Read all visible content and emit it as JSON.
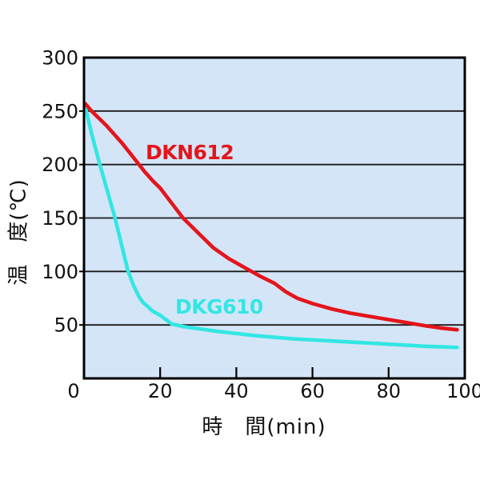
{
  "chart_data": {
    "type": "line",
    "title": "",
    "xlabel": "時　間(min)",
    "ylabel": "温　度(℃)",
    "xlim": [
      0,
      100
    ],
    "ylim": [
      0,
      300
    ],
    "x_ticks": [
      0,
      20,
      40,
      60,
      80,
      100
    ],
    "y_ticks": [
      50,
      100,
      150,
      200,
      250,
      300
    ],
    "grid": "horizontal gridlines at every 50 °C, on",
    "legend_position": "inline labels next to curves",
    "colors": {
      "plot_background": "#d4e5f8",
      "outer_background": "#ffffff",
      "gridline": "#1a1a1a",
      "border": "#000000",
      "dkn612_red": "#e4151b",
      "dkg610_cyan": "#33e6e3",
      "text": "#111111"
    },
    "series": [
      {
        "name": "DKN612",
        "color": "#e4151b",
        "points": [
          [
            0.3,
            257
          ],
          [
            2,
            250
          ],
          [
            4,
            243
          ],
          [
            6,
            236
          ],
          [
            8,
            228
          ],
          [
            10,
            220
          ],
          [
            12,
            211
          ],
          [
            14,
            202
          ],
          [
            16,
            193
          ],
          [
            18,
            185
          ],
          [
            20,
            178
          ],
          [
            23,
            164
          ],
          [
            26,
            150
          ],
          [
            30,
            136
          ],
          [
            34,
            122
          ],
          [
            38,
            112
          ],
          [
            42,
            104
          ],
          [
            46,
            96
          ],
          [
            50,
            89
          ],
          [
            53,
            81
          ],
          [
            56,
            75
          ],
          [
            60,
            70
          ],
          [
            65,
            65
          ],
          [
            70,
            61
          ],
          [
            75,
            58
          ],
          [
            80,
            55
          ],
          [
            85,
            52
          ],
          [
            90,
            49
          ],
          [
            94,
            47
          ],
          [
            98,
            45.5
          ]
        ]
      },
      {
        "name": "DKG610",
        "color": "#33e6e3",
        "points": [
          [
            0.3,
            254
          ],
          [
            2,
            229
          ],
          [
            4,
            202
          ],
          [
            6,
            177
          ],
          [
            8,
            152
          ],
          [
            10,
            123
          ],
          [
            11.5,
            101
          ],
          [
            13,
            87
          ],
          [
            14.5,
            76
          ],
          [
            15.5,
            71
          ],
          [
            16.5,
            68
          ],
          [
            18,
            63
          ],
          [
            20,
            59
          ],
          [
            23,
            51
          ],
          [
            26,
            48.5
          ],
          [
            30,
            46.5
          ],
          [
            35,
            44
          ],
          [
            40,
            42
          ],
          [
            45,
            40
          ],
          [
            50,
            38.5
          ],
          [
            55,
            37
          ],
          [
            60,
            36
          ],
          [
            65,
            35
          ],
          [
            70,
            34
          ],
          [
            75,
            33
          ],
          [
            80,
            32
          ],
          [
            85,
            31
          ],
          [
            90,
            30
          ],
          [
            94,
            29.5
          ],
          [
            98,
            29
          ]
        ]
      }
    ]
  }
}
